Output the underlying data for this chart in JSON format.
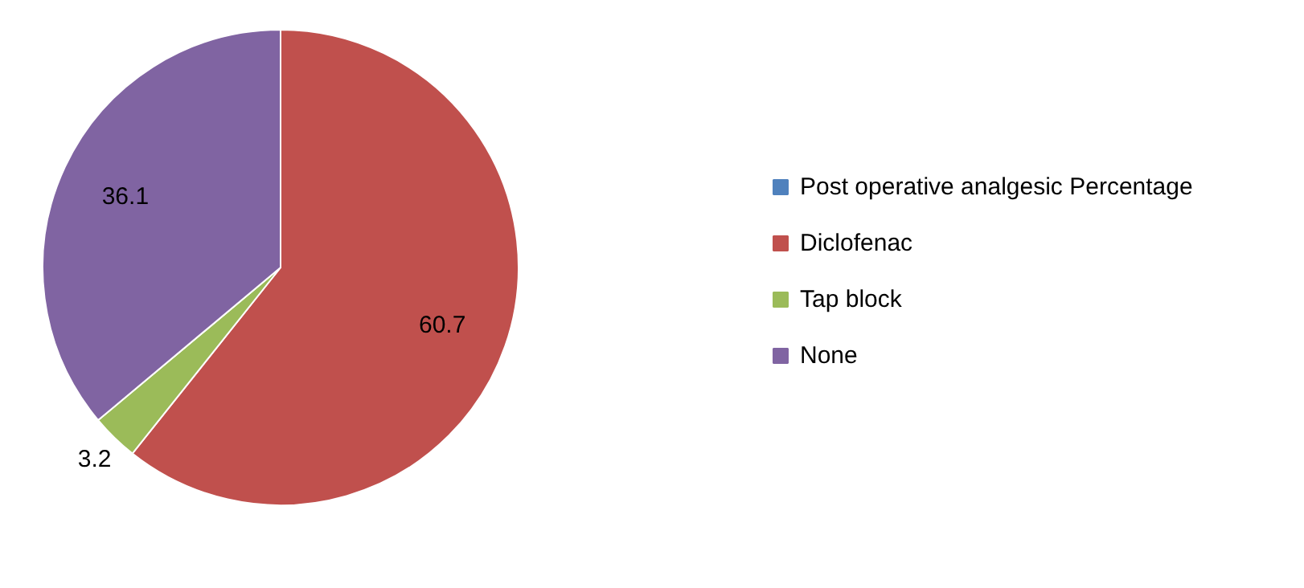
{
  "chart_data": {
    "type": "pie",
    "categories": [
      "Post operative analgesic Percentage",
      "Diclofenac",
      "Tap block",
      "None"
    ],
    "values": [
      null,
      60.7,
      3.2,
      36.1
    ],
    "colors": [
      "#4f81bd",
      "#c0504d",
      "#9bbb59",
      "#8064a2"
    ],
    "data_labels": true,
    "legend": "right"
  }
}
